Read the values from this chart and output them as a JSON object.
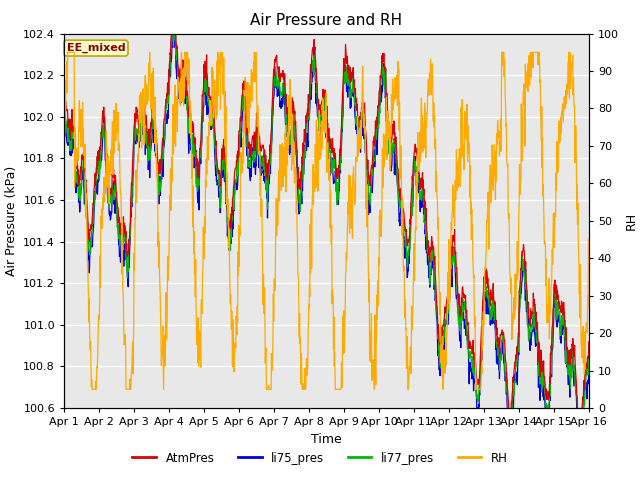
{
  "title": "Air Pressure and RH",
  "xlabel": "Time",
  "ylabel_left": "Air Pressure (kPa)",
  "ylabel_right": "RH",
  "ylim_left": [
    100.6,
    102.4
  ],
  "ylim_right": [
    0,
    100
  ],
  "yticks_left": [
    100.6,
    100.8,
    101.0,
    101.2,
    101.4,
    101.6,
    101.8,
    102.0,
    102.2,
    102.4
  ],
  "yticks_right": [
    0,
    10,
    20,
    30,
    40,
    50,
    60,
    70,
    80,
    90,
    100
  ],
  "x_tick_labels": [
    "Apr 1",
    "Apr 2",
    "Apr 3",
    "Apr 4",
    "Apr 5",
    "Apr 6",
    "Apr 7",
    "Apr 8",
    "Apr 9",
    "Apr 10",
    "Apr 11",
    "Apr 12",
    "Apr 13",
    "Apr 14",
    "Apr 15",
    "Apr 16"
  ],
  "watermark_text": "EE_mixed",
  "color_atm": "#dd0000",
  "color_li75": "#0000dd",
  "color_li77": "#00bb00",
  "color_rh": "#ffaa00",
  "plot_bg": "#e8e8e8",
  "legend_entries": [
    "AtmPres",
    "li75_pres",
    "li77_pres",
    "RH"
  ],
  "title_fontsize": 11,
  "axis_label_fontsize": 9,
  "tick_fontsize": 8
}
